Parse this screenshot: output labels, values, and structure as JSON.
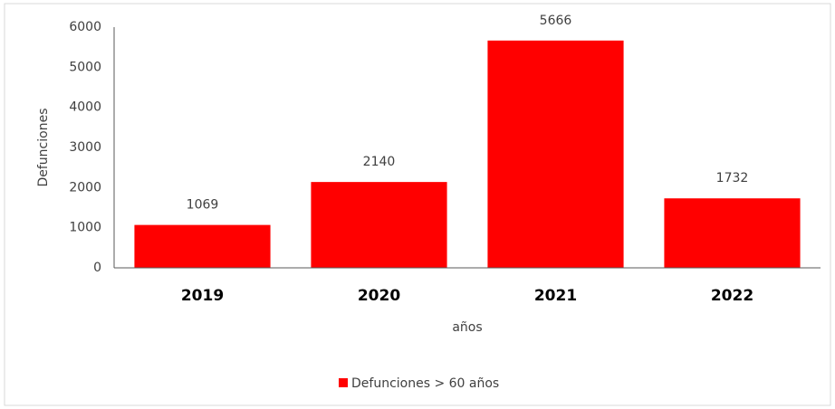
{
  "chart_data": {
    "type": "bar",
    "categories": [
      "2019",
      "2020",
      "2021",
      "2022"
    ],
    "series": [
      {
        "name": "Defunciones > 60 años",
        "color": "#ff0000",
        "values": [
          1069,
          2140,
          5666,
          1732
        ]
      }
    ],
    "x_label": "años",
    "y_label": "Defunciones",
    "ylim": [
      0,
      6000
    ],
    "yticks": [
      0,
      1000,
      2000,
      3000,
      4000,
      5000,
      6000
    ],
    "grid": false,
    "legend": "bottom"
  }
}
